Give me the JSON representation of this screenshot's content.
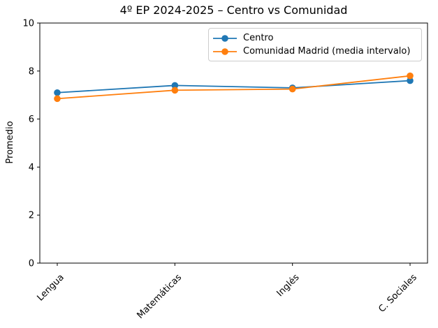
{
  "figure": {
    "kind": "matplotlib-line-chart"
  },
  "chart_data": {
    "type": "line",
    "title": "4º EP 2024-2025 – Centro vs Comunidad",
    "xlabel": "",
    "ylabel": "Promedio",
    "categories": [
      "Lengua",
      "Matemáticas",
      "Inglés",
      "C. Sociales"
    ],
    "series": [
      {
        "name": "Centro",
        "color": "#1f77b4",
        "marker": "circle",
        "values": [
          7.1,
          7.4,
          7.3,
          7.6
        ]
      },
      {
        "name": "Comunidad Madrid (media intervalo)",
        "color": "#ff7f0e",
        "marker": "circle",
        "values": [
          6.85,
          7.2,
          7.25,
          7.8
        ]
      }
    ],
    "ylim": [
      0,
      10
    ],
    "yticks": [
      0,
      2,
      4,
      6,
      8,
      10
    ],
    "grid": false,
    "legend": {
      "position": "upper right",
      "entries": [
        "Centro",
        "Comunidad Madrid (media intervalo)"
      ]
    },
    "x_tick_rotation_deg": 45
  }
}
